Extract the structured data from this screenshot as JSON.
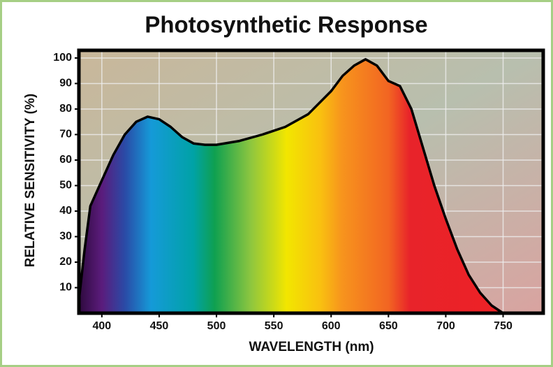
{
  "chart_data": {
    "type": "area",
    "title": "Photosynthetic Response",
    "x_label": "WAVELENGTH (nm)",
    "y_label": "RELATIVE SENSITIVITY (%)",
    "x": [
      380,
      385,
      390,
      400,
      410,
      420,
      430,
      440,
      450,
      460,
      470,
      480,
      490,
      500,
      520,
      540,
      560,
      580,
      600,
      610,
      620,
      630,
      640,
      650,
      660,
      670,
      680,
      690,
      700,
      710,
      720,
      730,
      740,
      750
    ],
    "y": [
      5,
      25,
      42,
      52,
      62,
      70,
      75,
      77,
      76,
      73,
      69,
      66.5,
      66,
      66,
      67.5,
      70,
      73,
      78,
      87,
      93,
      97,
      99.5,
      97,
      91,
      89,
      80,
      65,
      50,
      37,
      25,
      15,
      8,
      3,
      0
    ],
    "xlim": [
      380,
      785
    ],
    "ylim": [
      0,
      103
    ],
    "xticks": [
      400,
      450,
      500,
      550,
      600,
      650,
      700,
      750
    ],
    "yticks": [
      10,
      20,
      30,
      40,
      50,
      60,
      70,
      80,
      90,
      100
    ],
    "grid": true
  }
}
